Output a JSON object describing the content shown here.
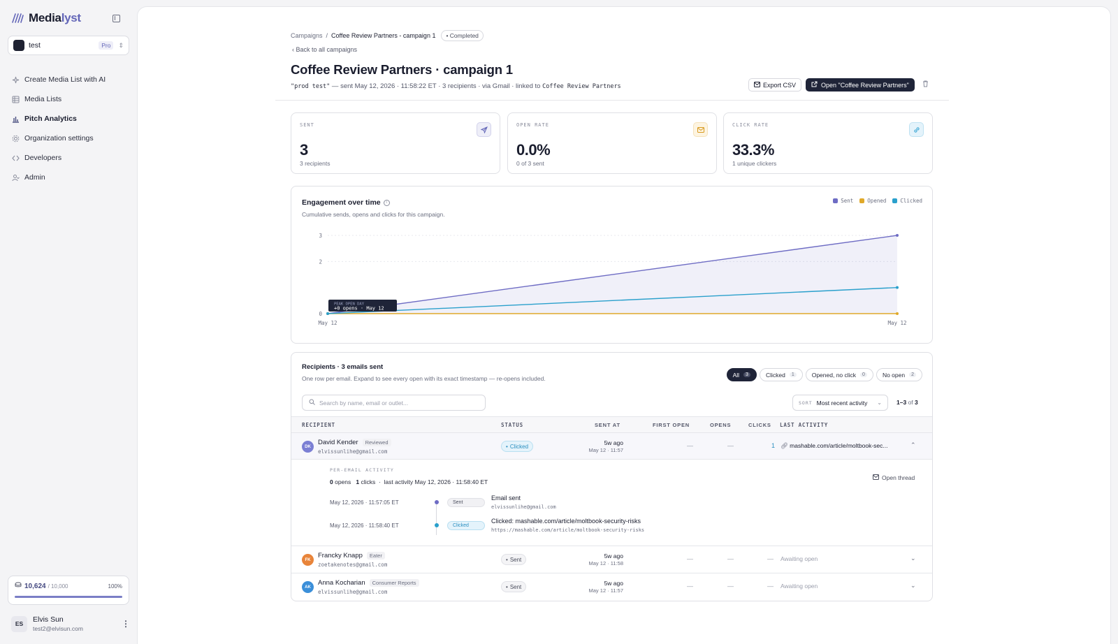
{
  "app": {
    "logo_main": "Media",
    "logo_accent": "lyst"
  },
  "workspace": {
    "name": "test",
    "plan": "Pro"
  },
  "nav": [
    {
      "label": "Create Media List with AI",
      "icon": "sparkle-icon"
    },
    {
      "label": "Media Lists",
      "icon": "table-icon"
    },
    {
      "label": "Pitch Analytics",
      "icon": "bar-chart-icon"
    },
    {
      "label": "Organization settings",
      "icon": "gear-icon"
    },
    {
      "label": "Developers",
      "icon": "code-icon"
    },
    {
      "label": "Admin",
      "icon": "users-icon"
    }
  ],
  "credits": {
    "value": "10,624",
    "limit": "/ 10,000",
    "percent_label": "100%",
    "fill": 1.0
  },
  "user": {
    "initials": "ES",
    "name": "Elvis Sun",
    "email": "test2@elvisun.com"
  },
  "breadcrumb": {
    "root": "Campaigns",
    "sep": "/",
    "current": "Coffee Review Partners - campaign 1",
    "status": "• Completed"
  },
  "back": "Back to all campaigns",
  "page": {
    "title": "Coffee Review Partners · campaign 1",
    "sub_name": "\"prod test\"",
    "sub_text": " — sent May 12, 2026 · 11:58:22 ET · 3 recipients · via Gmail · linked to ",
    "sub_list": "Coffee Review Partners"
  },
  "actions": {
    "export": "Export CSV",
    "open": "Open \"Coffee Review Partners\""
  },
  "stats": [
    {
      "label": "SENT",
      "value": "3",
      "sub": "3 recipients",
      "icon": "send-icon",
      "color": "#6366b8",
      "bg": "#eeeef8"
    },
    {
      "label": "OPEN RATE",
      "value": "0.0%",
      "sub": "0 of 3 sent",
      "icon": "mail-icon",
      "color": "#d89a1e",
      "bg": "#fdf4e1"
    },
    {
      "label": "CLICK RATE",
      "value": "33.3%",
      "sub": "1 unique clickers",
      "icon": "link-icon",
      "color": "#2a9fd0",
      "bg": "#e4f3fb"
    }
  ],
  "chart_card": {
    "title": "Engagement over time",
    "desc": "Cumulative sends, opens and clicks for this campaign.",
    "tooltip_line1": "PEAK OPEN DAY",
    "tooltip_line2": "+0 opens · May 12"
  },
  "chart_data": {
    "type": "area",
    "x": [
      "May 12",
      "May 12"
    ],
    "ylim": [
      0,
      3
    ],
    "yticks": [
      "0",
      "2",
      "3"
    ],
    "series": [
      {
        "name": "Sent",
        "color": "#6e6cc4",
        "values": [
          0,
          3
        ]
      },
      {
        "name": "Opened",
        "color": "#e0a92a",
        "values": [
          0,
          0
        ]
      },
      {
        "name": "Clicked",
        "color": "#2aa0cc",
        "values": [
          0,
          1
        ]
      }
    ],
    "legend": "top-right"
  },
  "recipients": {
    "title": "Recipients · 3 emails sent",
    "desc": "One row per email. Expand to see every open with its exact timestamp — re-opens included.",
    "filters": [
      {
        "label": "All",
        "count": "3"
      },
      {
        "label": "Clicked",
        "count": "1"
      },
      {
        "label": "Opened, no click",
        "count": "0"
      },
      {
        "label": "No open",
        "count": "2"
      }
    ],
    "search_placeholder": "Search by name, email or outlet...",
    "sort_label": "SORT",
    "sort_value": "Most recent activity",
    "pager_range": "1–3",
    "pager_of": "of",
    "pager_total": "3",
    "columns": [
      "RECIPIENT",
      "STATUS",
      "SENT AT",
      "FIRST OPEN",
      "OPENS",
      "CLICKS",
      "LAST ACTIVITY"
    ],
    "rows": [
      {
        "initials": "DK",
        "avatar_color": "#7b7fd4",
        "name": "David Kender",
        "outlet": "Reviewed",
        "email": "elvissunlihe@gmail.com",
        "status": "Clicked",
        "sent_rel": "5w ago",
        "sent_abs": "May 12 · 11:57",
        "first_open": "—",
        "opens": "—",
        "clicks": "1",
        "last": "mashable.com/article/moltbook-sec..."
      },
      {
        "initials": "FK",
        "avatar_color": "#e8843a",
        "name": "Francky Knapp",
        "outlet": "Eater",
        "email": "zoetakenotes@gmail.com",
        "status": "Sent",
        "sent_rel": "5w ago",
        "sent_abs": "May 12 · 11:58",
        "first_open": "—",
        "opens": "—",
        "clicks": "—",
        "last": "Awaiting open"
      },
      {
        "initials": "AK",
        "avatar_color": "#3b8fd9",
        "name": "Anna Kocharian",
        "outlet": "Consumer Reports",
        "email": "elvissunlihe@gmail.com",
        "status": "Sent",
        "sent_rel": "5w ago",
        "sent_abs": "May 12 · 11:57",
        "first_open": "—",
        "opens": "—",
        "clicks": "—",
        "last": "Awaiting open"
      }
    ],
    "detail": {
      "label": "PER-EMAIL ACTIVITY",
      "opens": "0",
      "opens_lbl": " opens",
      "clicks": "1",
      "clicks_lbl": " clicks",
      "last": "last activity May 12, 2026 · 11:58:40 ET",
      "open_thread": "Open thread",
      "events": [
        {
          "time": "May 12, 2026 · 11:57:05 ET",
          "badge": "Sent",
          "title": "Email sent",
          "sub": "elvissunlihe@gmail.com"
        },
        {
          "time": "May 12, 2026 · 11:58:40 ET",
          "badge": "Clicked",
          "title": "Clicked: mashable.com/article/moltbook-security-risks",
          "sub": "https://mashable.com/article/moltbook-security-risks"
        }
      ]
    }
  }
}
